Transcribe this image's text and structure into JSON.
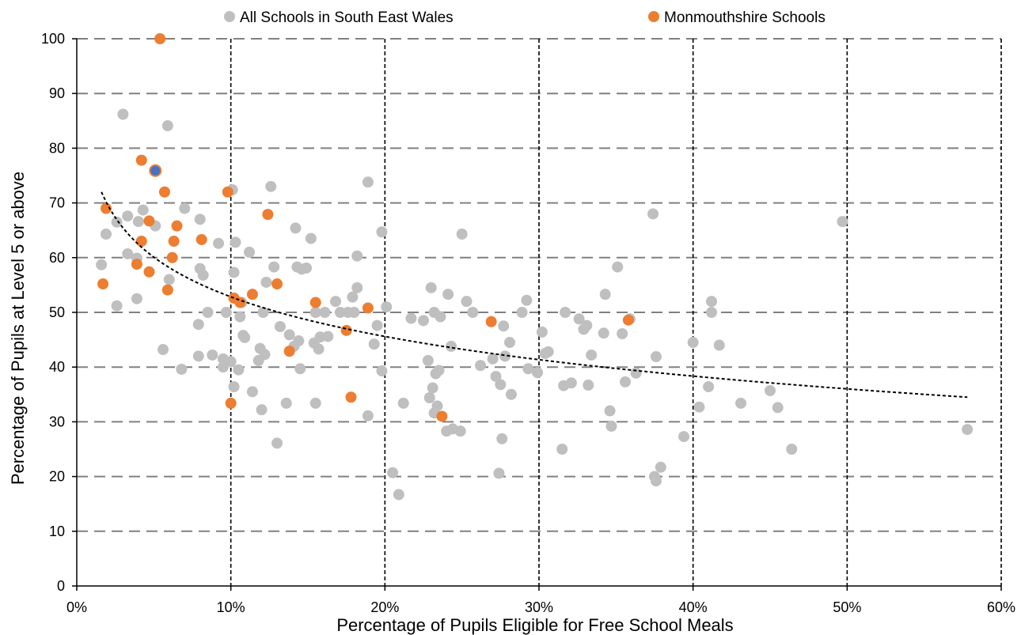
{
  "chart_data": {
    "type": "scatter",
    "xlabel": "Percentage of Pupils Eligible for Free School Meals",
    "ylabel": "Percentage of Pupils at Level 5 or above",
    "xlim": [
      0,
      60
    ],
    "ylim": [
      0,
      100
    ],
    "x_ticks": [
      0,
      10,
      20,
      30,
      40,
      50,
      60
    ],
    "x_tick_labels": [
      "0%",
      "10%",
      "20%",
      "30%",
      "40%",
      "50%",
      "60%"
    ],
    "y_ticks": [
      0,
      10,
      20,
      30,
      40,
      50,
      60,
      70,
      80,
      90,
      100
    ],
    "y_tick_labels": [
      "0",
      "10",
      "20",
      "30",
      "40",
      "50",
      "60",
      "70",
      "80",
      "90",
      "100"
    ],
    "grid": {
      "horizontal": "dashed",
      "vertical": "dashed",
      "horizontal_color": "#808080",
      "vertical_color": "#000000"
    },
    "legend_placement": "top",
    "series": [
      {
        "name": "All Schools in South East Wales",
        "color": "#bfbfbf",
        "points": [
          [
            1.6,
            58.7
          ],
          [
            1.9,
            64.3
          ],
          [
            2.6,
            51.2
          ],
          [
            2.6,
            66.5
          ],
          [
            3.0,
            86.2
          ],
          [
            3.3,
            60.7
          ],
          [
            3.3,
            67.6
          ],
          [
            3.9,
            52.5
          ],
          [
            3.9,
            59.9
          ],
          [
            4.0,
            66.6
          ],
          [
            4.3,
            68.7
          ],
          [
            5.1,
            65.8
          ],
          [
            5.6,
            43.2
          ],
          [
            5.9,
            84.1
          ],
          [
            6.0,
            56.0
          ],
          [
            6.8,
            39.6
          ],
          [
            7.0,
            69.0
          ],
          [
            7.9,
            47.8
          ],
          [
            7.9,
            42.0
          ],
          [
            8.0,
            58.0
          ],
          [
            8.0,
            67.0
          ],
          [
            8.2,
            56.8
          ],
          [
            8.5,
            50.0
          ],
          [
            8.8,
            42.2
          ],
          [
            9.2,
            62.6
          ],
          [
            9.5,
            41.5
          ],
          [
            9.5,
            40.0
          ],
          [
            9.7,
            50.0
          ],
          [
            10.0,
            41.0
          ],
          [
            10.1,
            72.4
          ],
          [
            10.2,
            57.3
          ],
          [
            10.2,
            36.4
          ],
          [
            10.3,
            62.8
          ],
          [
            10.5,
            39.5
          ],
          [
            10.6,
            49.2
          ],
          [
            10.7,
            51.8
          ],
          [
            10.8,
            45.8
          ],
          [
            10.9,
            45.4
          ],
          [
            11.2,
            61.0
          ],
          [
            11.4,
            35.5
          ],
          [
            11.8,
            41.2
          ],
          [
            11.9,
            43.4
          ],
          [
            12.0,
            32.2
          ],
          [
            12.1,
            50.0
          ],
          [
            12.2,
            42.3
          ],
          [
            12.3,
            55.5
          ],
          [
            12.6,
            73.0
          ],
          [
            12.8,
            58.3
          ],
          [
            13.0,
            26.1
          ],
          [
            13.2,
            47.4
          ],
          [
            13.6,
            33.4
          ],
          [
            13.8,
            45.9
          ],
          [
            14.1,
            43.8
          ],
          [
            14.2,
            65.4
          ],
          [
            14.3,
            58.3
          ],
          [
            14.4,
            44.8
          ],
          [
            14.5,
            39.7
          ],
          [
            14.6,
            57.9
          ],
          [
            14.9,
            58.1
          ],
          [
            15.2,
            63.5
          ],
          [
            15.4,
            44.4
          ],
          [
            15.5,
            50.0
          ],
          [
            15.5,
            33.4
          ],
          [
            15.7,
            43.3
          ],
          [
            15.8,
            45.5
          ],
          [
            16.1,
            50.0
          ],
          [
            16.3,
            45.6
          ],
          [
            16.8,
            52.0
          ],
          [
            17.1,
            50.0
          ],
          [
            17.6,
            50.0
          ],
          [
            17.9,
            52.8
          ],
          [
            18.0,
            50.0
          ],
          [
            18.2,
            54.5
          ],
          [
            18.2,
            60.3
          ],
          [
            18.9,
            31.1
          ],
          [
            18.9,
            73.8
          ],
          [
            19.3,
            44.2
          ],
          [
            19.5,
            47.6
          ],
          [
            19.8,
            39.3
          ],
          [
            19.8,
            64.7
          ],
          [
            20.1,
            51.0
          ],
          [
            20.5,
            20.7
          ],
          [
            20.9,
            16.7
          ],
          [
            21.2,
            33.4
          ],
          [
            21.7,
            48.9
          ],
          [
            22.5,
            48.5
          ],
          [
            22.8,
            41.2
          ],
          [
            22.9,
            34.4
          ],
          [
            23.0,
            54.5
          ],
          [
            23.1,
            36.2
          ],
          [
            23.2,
            31.6
          ],
          [
            23.2,
            50.0
          ],
          [
            23.3,
            38.8
          ],
          [
            23.4,
            32.9
          ],
          [
            23.5,
            39.4
          ],
          [
            23.6,
            49.2
          ],
          [
            24.0,
            28.3
          ],
          [
            24.1,
            53.3
          ],
          [
            24.3,
            43.8
          ],
          [
            24.4,
            28.7
          ],
          [
            24.9,
            28.3
          ],
          [
            25.0,
            64.3
          ],
          [
            25.3,
            52.0
          ],
          [
            25.7,
            50.0
          ],
          [
            26.2,
            40.3
          ],
          [
            27.0,
            41.5
          ],
          [
            27.2,
            38.3
          ],
          [
            27.4,
            20.6
          ],
          [
            27.5,
            36.8
          ],
          [
            27.6,
            26.9
          ],
          [
            27.7,
            47.5
          ],
          [
            27.8,
            42.0
          ],
          [
            28.1,
            44.5
          ],
          [
            28.2,
            35.0
          ],
          [
            28.9,
            50.0
          ],
          [
            29.2,
            52.2
          ],
          [
            29.3,
            39.7
          ],
          [
            29.9,
            39.0
          ],
          [
            30.2,
            46.4
          ],
          [
            30.4,
            42.5
          ],
          [
            30.6,
            42.8
          ],
          [
            31.5,
            25.0
          ],
          [
            31.6,
            36.6
          ],
          [
            31.7,
            50.0
          ],
          [
            32.1,
            37.1
          ],
          [
            32.6,
            48.8
          ],
          [
            32.9,
            46.9
          ],
          [
            33.1,
            47.6
          ],
          [
            33.2,
            36.7
          ],
          [
            33.4,
            42.2
          ],
          [
            34.2,
            46.2
          ],
          [
            34.3,
            53.3
          ],
          [
            34.6,
            32.0
          ],
          [
            34.7,
            29.2
          ],
          [
            35.1,
            58.3
          ],
          [
            35.4,
            46.1
          ],
          [
            35.6,
            37.3
          ],
          [
            35.9,
            48.8
          ],
          [
            36.3,
            38.9
          ],
          [
            37.4,
            68.0
          ],
          [
            37.5,
            20.0
          ],
          [
            37.6,
            19.2
          ],
          [
            37.6,
            41.9
          ],
          [
            37.9,
            21.7
          ],
          [
            39.4,
            27.3
          ],
          [
            40.0,
            44.5
          ],
          [
            40.4,
            32.7
          ],
          [
            41.0,
            36.4
          ],
          [
            41.2,
            52.0
          ],
          [
            41.2,
            50.0
          ],
          [
            41.7,
            44.0
          ],
          [
            43.1,
            33.4
          ],
          [
            45.0,
            35.7
          ],
          [
            45.5,
            32.6
          ],
          [
            46.4,
            25.0
          ],
          [
            49.7,
            66.6
          ],
          [
            57.8,
            28.6
          ]
        ]
      },
      {
        "name": "Monmouthshire Schools",
        "color": "#ed7d31",
        "points": [
          [
            1.7,
            55.2
          ],
          [
            1.9,
            69.0
          ],
          [
            3.9,
            58.8
          ],
          [
            4.2,
            77.8
          ],
          [
            4.2,
            63.0
          ],
          [
            4.7,
            57.4
          ],
          [
            4.7,
            66.7
          ],
          [
            5.4,
            100.0
          ],
          [
            5.7,
            72.0
          ],
          [
            5.9,
            54.1
          ],
          [
            6.2,
            60.0
          ],
          [
            6.3,
            63.0
          ],
          [
            6.5,
            65.8
          ],
          [
            8.1,
            63.3
          ],
          [
            9.8,
            72.0
          ],
          [
            10.0,
            33.4
          ],
          [
            10.2,
            52.6
          ],
          [
            10.6,
            51.8
          ],
          [
            11.4,
            53.3
          ],
          [
            12.4,
            67.9
          ],
          [
            13.0,
            55.2
          ],
          [
            13.8,
            42.9
          ],
          [
            15.5,
            51.8
          ],
          [
            17.5,
            46.7
          ],
          [
            17.8,
            34.5
          ],
          [
            18.9,
            50.8
          ],
          [
            23.7,
            31.0
          ],
          [
            26.9,
            48.3
          ],
          [
            35.8,
            48.6
          ]
        ]
      },
      {
        "color": "#4472c4",
        "stroke": "#ed7d31",
        "points": [
          [
            5.1,
            75.9
          ]
        ]
      }
    ],
    "trendline": {
      "type": "logarithmic",
      "style": "dashed",
      "color": "#000000",
      "x_range": [
        1.6,
        57.8
      ],
      "y_at_x_min": 72.0,
      "y_at_x_max": 34.5
    }
  }
}
